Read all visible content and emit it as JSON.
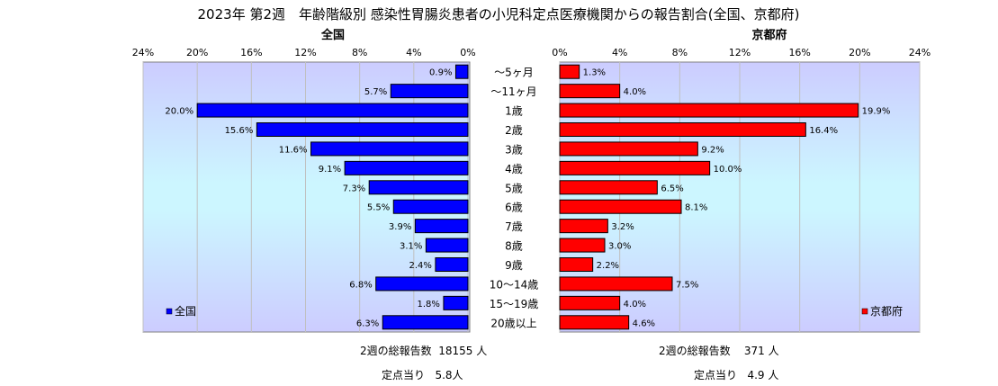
{
  "title": "2023年 第2週　年齢階級別 感染性胃腸炎患者の小児科定点医療機関からの報告割合(全国、京都府)",
  "chart_data": {
    "type": "bar",
    "orientation": "horizontal",
    "categories": [
      "〜5ヶ月",
      "〜11ヶ月",
      "1歳",
      "2歳",
      "3歳",
      "4歳",
      "5歳",
      "6歳",
      "7歳",
      "8歳",
      "9歳",
      "10〜14歳",
      "15〜19歳",
      "20歳以上"
    ],
    "series": [
      {
        "name": "全国",
        "header": "全国",
        "color": "#0000ff",
        "values": [
          0.9,
          5.7,
          20.0,
          15.6,
          11.6,
          9.1,
          7.3,
          5.5,
          3.9,
          3.1,
          2.4,
          6.8,
          1.8,
          6.3
        ],
        "value_labels": [
          "0.9%",
          "5.7%",
          "20.0%",
          "15.6%",
          "11.6%",
          "9.1%",
          "7.3%",
          "5.5%",
          "3.9%",
          "3.1%",
          "2.4%",
          "6.8%",
          "1.8%",
          "6.3%"
        ],
        "ticks": [
          "24%",
          "20%",
          "16%",
          "12%",
          "8%",
          "4%",
          "0%"
        ]
      },
      {
        "name": "京都府",
        "header": "京都府",
        "color": "#ff0000",
        "values": [
          1.3,
          4.0,
          19.9,
          16.4,
          9.2,
          10.0,
          6.5,
          8.1,
          3.2,
          3.0,
          2.2,
          7.5,
          4.0,
          4.6
        ],
        "value_labels": [
          "1.3%",
          "4.0%",
          "19.9%",
          "16.4%",
          "9.2%",
          "10.0%",
          "6.5%",
          "8.1%",
          "3.2%",
          "3.0%",
          "2.2%",
          "7.5%",
          "4.0%",
          "4.6%"
        ],
        "ticks": [
          "0%",
          "4%",
          "8%",
          "12%",
          "16%",
          "20%",
          "24%"
        ]
      }
    ],
    "xlim": [
      0,
      24
    ],
    "grid": true,
    "legend": [
      "bottom-left",
      "bottom-right"
    ]
  },
  "footer": {
    "national_total": "2週の総報告数  18155 人",
    "national_per_point": "定点当り   5.8人",
    "kyoto_total": "2週の総報告数    371 人",
    "kyoto_per_point": "定点当り   4.9 人"
  }
}
